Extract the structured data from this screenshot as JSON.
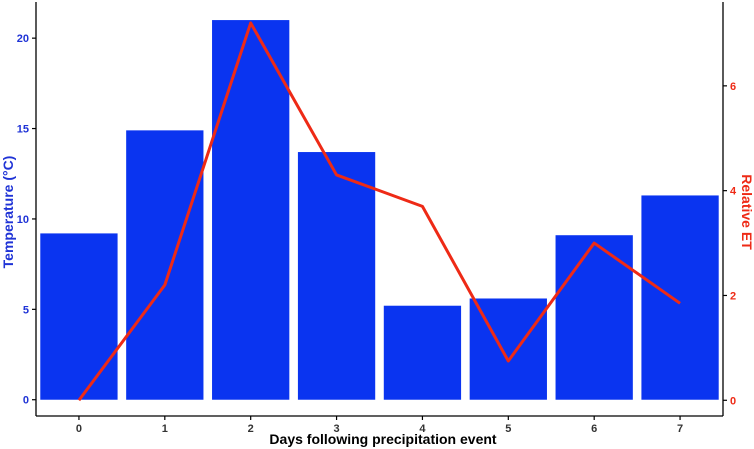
{
  "chart_data": {
    "type": "bar",
    "title": "",
    "xlabel": "Days following precipitation event",
    "ylabel": "Temperature (°C)",
    "y2label": "Relative ET",
    "categories": [
      "0",
      "1",
      "2",
      "3",
      "4",
      "5",
      "6",
      "7"
    ],
    "series": [
      {
        "type": "bar",
        "axis": "left",
        "values": [
          9.2,
          14.9,
          21.0,
          13.7,
          5.2,
          5.6,
          9.1,
          11.3
        ],
        "color": "#0a34f0"
      },
      {
        "type": "line",
        "axis": "right",
        "values": [
          0.0,
          2.2,
          7.2,
          4.3,
          3.7,
          0.75,
          3.0,
          1.85
        ],
        "color": "#ee2a16"
      }
    ],
    "ylim": [
      -0.9,
      22
    ],
    "y2lim": [
      -0.3,
      7.6
    ],
    "yticks": [
      0,
      5,
      10,
      15,
      20
    ],
    "y2ticks": [
      0,
      2,
      4,
      6
    ],
    "grid": false,
    "left_axis_color": "#1f33d6",
    "right_axis_color": "#ee2a16"
  }
}
